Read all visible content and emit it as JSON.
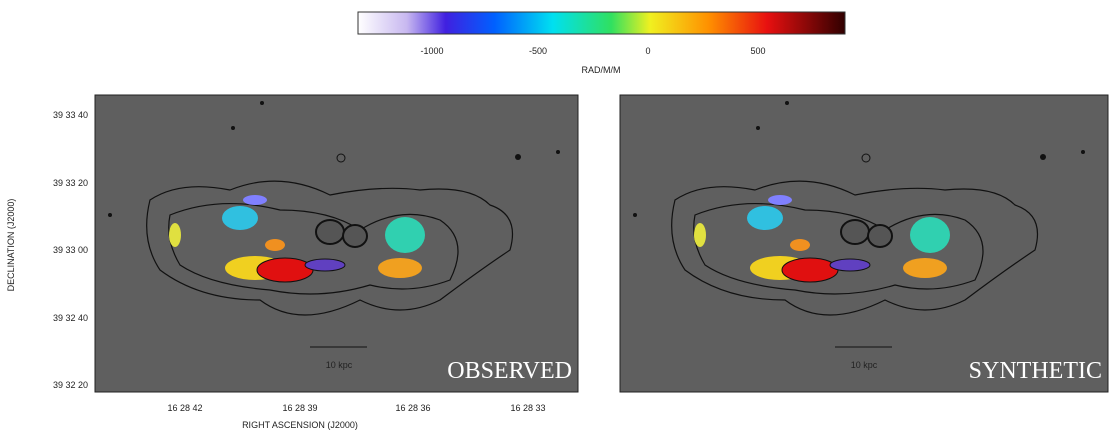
{
  "colorbar": {
    "label": "RAD/M/M",
    "ticks": [
      "-1000",
      "-500",
      "0",
      "500"
    ]
  },
  "panels": [
    {
      "label": "OBSERVED",
      "scale": "10 kpc",
      "y_axis_label": "DECLINATION (J2000)",
      "y_ticks": [
        "39 33 40",
        "39 33 20",
        "39 33 00",
        "39 32 40",
        "39 32 20"
      ],
      "x_axis_label": "RIGHT ASCENSION (J2000)",
      "x_ticks": [
        "16 28 42",
        "16 28 39",
        "16 28 36",
        "16 28 33"
      ]
    },
    {
      "label": "SYNTHETIC",
      "scale": "10 kpc"
    }
  ]
}
